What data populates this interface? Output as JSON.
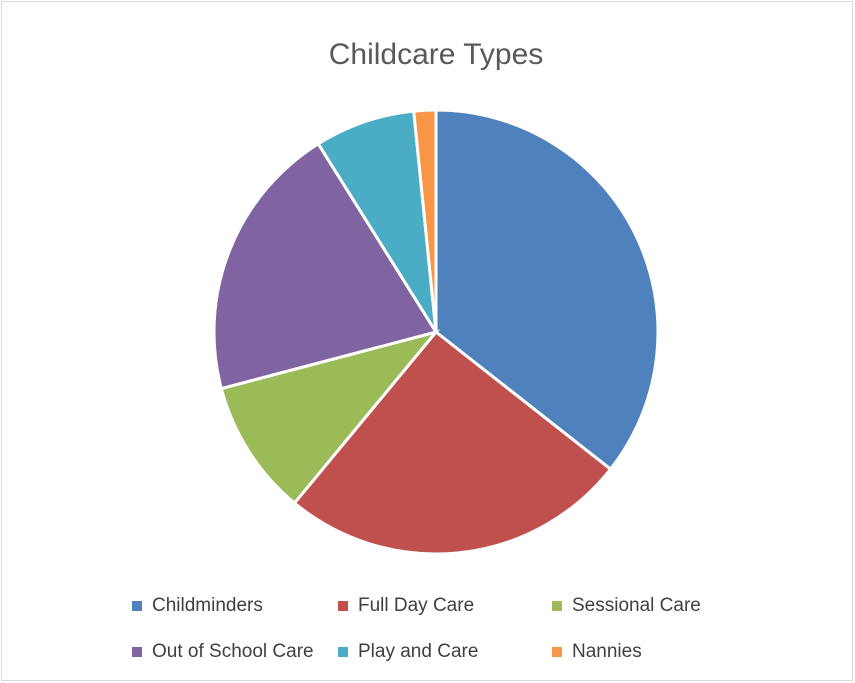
{
  "chart_data": {
    "type": "pie",
    "title": "Childcare Types",
    "categories": [
      "Childminders",
      "Full Day Care",
      "Sessional Care",
      "Out of School Care",
      "Play and Care",
      "Nannies"
    ],
    "values": [
      35.6,
      25.4,
      9.9,
      20.2,
      7.3,
      1.6
    ],
    "colors": [
      "#4f81bd",
      "#c0504d",
      "#9bbb59",
      "#8064a2",
      "#4bacc6",
      "#f79646"
    ],
    "legend": "bottom"
  }
}
